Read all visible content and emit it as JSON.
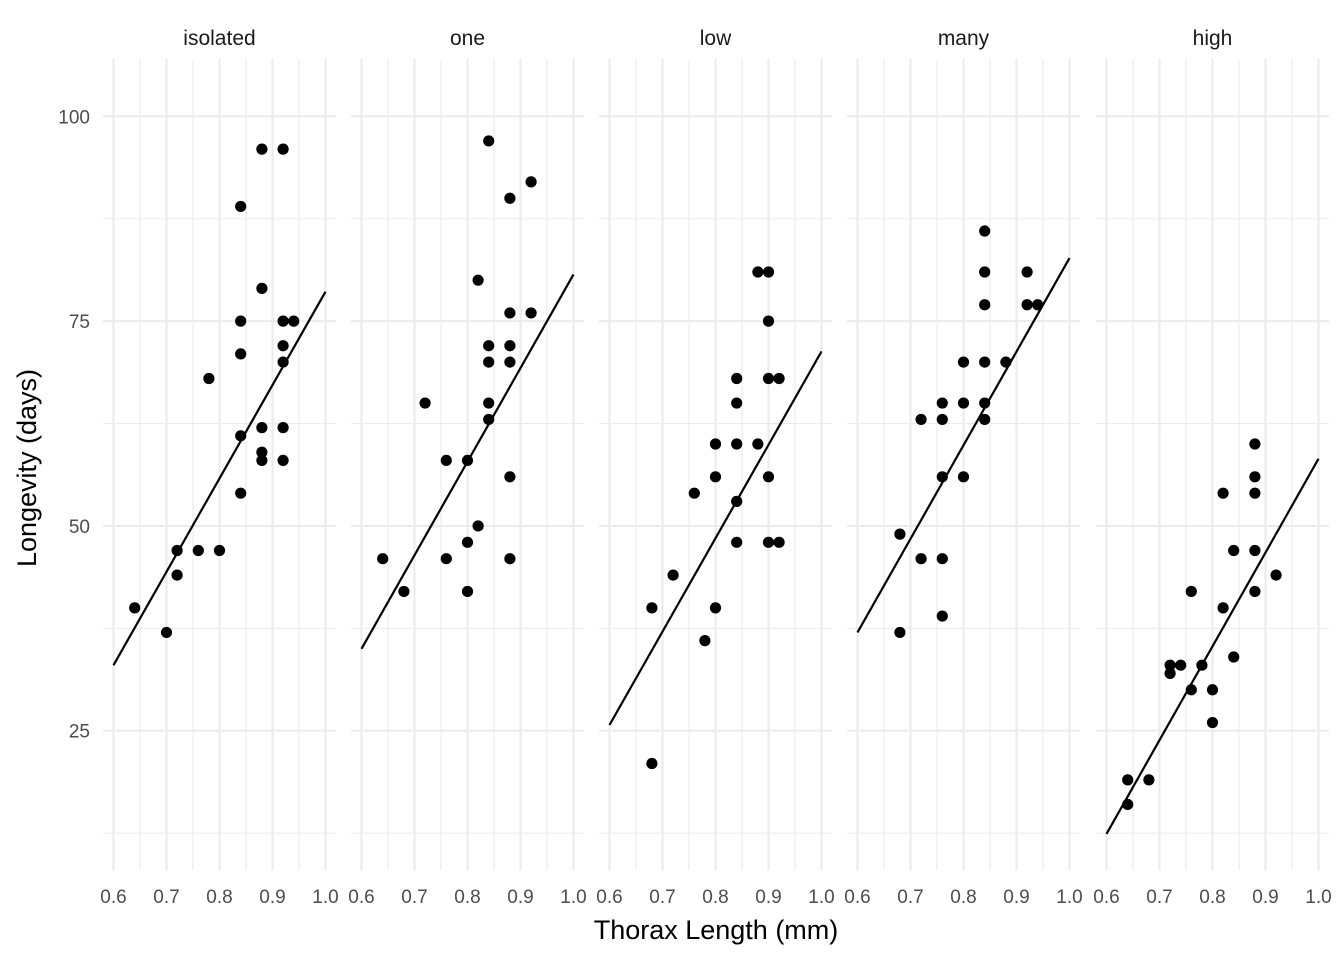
{
  "chart_data": {
    "type": "scatter",
    "xlabel": "Thorax Length (mm)",
    "ylabel": "Longevity (days)",
    "xlim": [
      0.6,
      1.0
    ],
    "ylim": [
      8,
      107
    ],
    "x_ticks": [
      "0.6",
      "0.7",
      "0.8",
      "0.9",
      "1.0"
    ],
    "y_ticks": [
      "25",
      "50",
      "75",
      "100"
    ],
    "y_tick_values": [
      25,
      50,
      75,
      100
    ],
    "x_tick_values": [
      0.6,
      0.7,
      0.8,
      0.9,
      1.0
    ],
    "grid": true,
    "point_color": "#000000",
    "line_color": "#000000",
    "panels": [
      {
        "label": "isolated",
        "points": [
          [
            0.64,
            40
          ],
          [
            0.7,
            37
          ],
          [
            0.72,
            47
          ],
          [
            0.72,
            44
          ],
          [
            0.76,
            47
          ],
          [
            0.78,
            68
          ],
          [
            0.8,
            47
          ],
          [
            0.84,
            89
          ],
          [
            0.84,
            75
          ],
          [
            0.84,
            71
          ],
          [
            0.84,
            61
          ],
          [
            0.84,
            54
          ],
          [
            0.88,
            96
          ],
          [
            0.88,
            79
          ],
          [
            0.88,
            62
          ],
          [
            0.88,
            59
          ],
          [
            0.88,
            58
          ],
          [
            0.92,
            96
          ],
          [
            0.92,
            75
          ],
          [
            0.92,
            72
          ],
          [
            0.92,
            70
          ],
          [
            0.92,
            62
          ],
          [
            0.92,
            58
          ],
          [
            0.94,
            75
          ]
        ],
        "fit": [
          [
            0.6,
            33
          ],
          [
            1.0,
            78.6
          ]
        ]
      },
      {
        "label": "one",
        "points": [
          [
            0.64,
            46
          ],
          [
            0.68,
            42
          ],
          [
            0.72,
            65
          ],
          [
            0.76,
            58
          ],
          [
            0.76,
            46
          ],
          [
            0.8,
            58
          ],
          [
            0.8,
            48
          ],
          [
            0.8,
            42
          ],
          [
            0.82,
            80
          ],
          [
            0.82,
            50
          ],
          [
            0.84,
            97
          ],
          [
            0.84,
            72
          ],
          [
            0.84,
            70
          ],
          [
            0.84,
            65
          ],
          [
            0.84,
            63
          ],
          [
            0.88,
            90
          ],
          [
            0.88,
            76
          ],
          [
            0.88,
            72
          ],
          [
            0.88,
            70
          ],
          [
            0.88,
            56
          ],
          [
            0.88,
            46
          ],
          [
            0.92,
            92
          ],
          [
            0.92,
            76
          ]
        ],
        "fit": [
          [
            0.6,
            35
          ],
          [
            1.0,
            80.7
          ]
        ]
      },
      {
        "label": "low",
        "points": [
          [
            0.68,
            40
          ],
          [
            0.68,
            21
          ],
          [
            0.72,
            44
          ],
          [
            0.76,
            54
          ],
          [
            0.78,
            36
          ],
          [
            0.8,
            60
          ],
          [
            0.8,
            56
          ],
          [
            0.8,
            40
          ],
          [
            0.84,
            68
          ],
          [
            0.84,
            65
          ],
          [
            0.84,
            60
          ],
          [
            0.84,
            53
          ],
          [
            0.84,
            48
          ],
          [
            0.88,
            81
          ],
          [
            0.88,
            60
          ],
          [
            0.9,
            81
          ],
          [
            0.9,
            75
          ],
          [
            0.9,
            68
          ],
          [
            0.9,
            56
          ],
          [
            0.9,
            48
          ],
          [
            0.92,
            68
          ],
          [
            0.92,
            48
          ]
        ],
        "fit": [
          [
            0.6,
            25.7
          ],
          [
            1.0,
            71.3
          ]
        ]
      },
      {
        "label": "many",
        "points": [
          [
            0.68,
            49
          ],
          [
            0.68,
            37
          ],
          [
            0.72,
            63
          ],
          [
            0.72,
            46
          ],
          [
            0.76,
            65
          ],
          [
            0.76,
            63
          ],
          [
            0.76,
            56
          ],
          [
            0.76,
            46
          ],
          [
            0.76,
            39
          ],
          [
            0.8,
            70
          ],
          [
            0.8,
            65
          ],
          [
            0.8,
            56
          ],
          [
            0.84,
            86
          ],
          [
            0.84,
            81
          ],
          [
            0.84,
            77
          ],
          [
            0.84,
            70
          ],
          [
            0.84,
            65
          ],
          [
            0.84,
            63
          ],
          [
            0.88,
            70
          ],
          [
            0.92,
            81
          ],
          [
            0.92,
            77
          ],
          [
            0.94,
            77
          ]
        ],
        "fit": [
          [
            0.6,
            37
          ],
          [
            1.0,
            82.7
          ]
        ]
      },
      {
        "label": "high",
        "points": [
          [
            0.64,
            19
          ],
          [
            0.64,
            16
          ],
          [
            0.68,
            19
          ],
          [
            0.72,
            33
          ],
          [
            0.72,
            32
          ],
          [
            0.74,
            33
          ],
          [
            0.76,
            42
          ],
          [
            0.76,
            30
          ],
          [
            0.78,
            33
          ],
          [
            0.8,
            30
          ],
          [
            0.8,
            26
          ],
          [
            0.82,
            54
          ],
          [
            0.82,
            40
          ],
          [
            0.84,
            47
          ],
          [
            0.84,
            34
          ],
          [
            0.88,
            60
          ],
          [
            0.88,
            56
          ],
          [
            0.88,
            54
          ],
          [
            0.88,
            47
          ],
          [
            0.88,
            42
          ],
          [
            0.92,
            44
          ]
        ],
        "fit": [
          [
            0.6,
            12.4
          ],
          [
            1.0,
            58.2
          ]
        ]
      }
    ]
  }
}
